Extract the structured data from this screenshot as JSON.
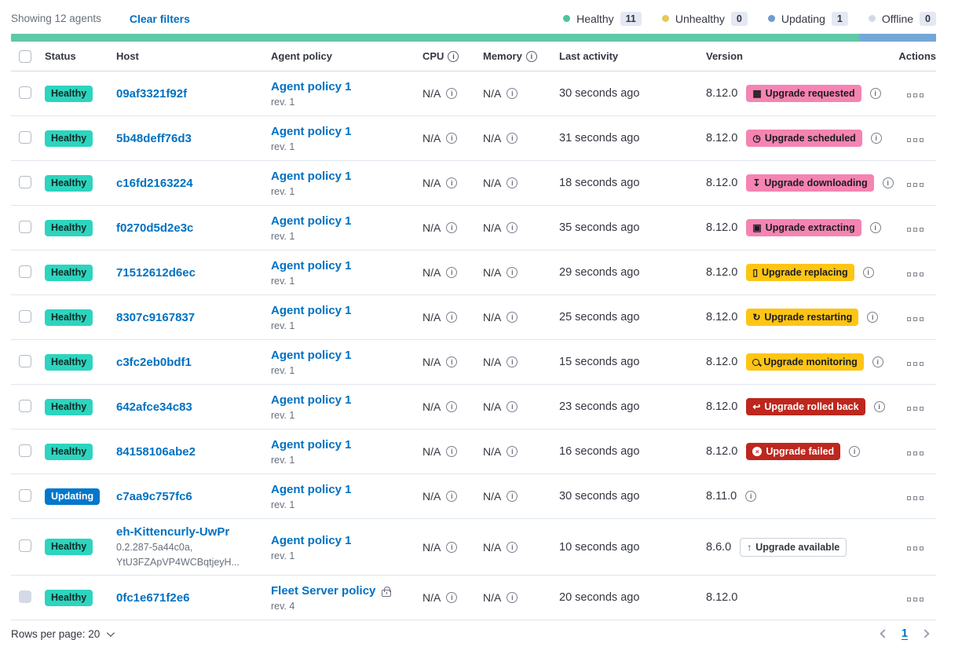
{
  "toolbar": {
    "showing": "Showing 12 agents",
    "clear_filters": "Clear filters"
  },
  "legend": [
    {
      "label": "Healthy",
      "count": "11",
      "dot_color": "#4DC4A1"
    },
    {
      "label": "Unhealthy",
      "count": "0",
      "dot_color": "#E5CB54"
    },
    {
      "label": "Updating",
      "count": "1",
      "dot_color": "#6D9CCF"
    },
    {
      "label": "Offline",
      "count": "0",
      "dot_color": "#D3DAE6"
    }
  ],
  "status_bar": {
    "segments": [
      {
        "name": "healthy",
        "color": "#5FC9A7",
        "fraction": 11
      },
      {
        "name": "updating",
        "color": "#74A7D6",
        "fraction": 1
      }
    ]
  },
  "colors": {
    "link": "#0071C2",
    "healthy_badge": "#2DD4BE",
    "updating_badge": "#0077CC",
    "upgrade_pink": "#F584B2",
    "upgrade_warning": "#FEC514",
    "upgrade_danger": "#BD271E",
    "text_subdued": "#69707D"
  },
  "table": {
    "columns": {
      "status": "Status",
      "host": "Host",
      "policy": "Agent policy",
      "cpu": "CPU",
      "memory": "Memory",
      "last_activity": "Last activity",
      "version": "Version",
      "actions": "Actions"
    }
  },
  "agents": [
    {
      "status": {
        "label": "Healthy",
        "color": "success"
      },
      "host": "09af3321f92f",
      "host_sub": [],
      "policy": {
        "name": "Agent policy 1",
        "rev": "rev. 1",
        "locked": false
      },
      "cpu": "N/A",
      "memory": "N/A",
      "last_activity": "30 seconds ago",
      "version": "8.12.0",
      "upgrade": {
        "label": "Upgrade requested",
        "color": "pink",
        "icon": "calendar-icon"
      },
      "version_info": true,
      "checkbox_disabled": false
    },
    {
      "status": {
        "label": "Healthy",
        "color": "success"
      },
      "host": "5b48deff76d3",
      "host_sub": [],
      "policy": {
        "name": "Agent policy 1",
        "rev": "rev. 1",
        "locked": false
      },
      "cpu": "N/A",
      "memory": "N/A",
      "last_activity": "31 seconds ago",
      "version": "8.12.0",
      "upgrade": {
        "label": "Upgrade scheduled",
        "color": "pink",
        "icon": "clock-icon"
      },
      "version_info": true,
      "checkbox_disabled": false
    },
    {
      "status": {
        "label": "Healthy",
        "color": "success"
      },
      "host": "c16fd2163224",
      "host_sub": [],
      "policy": {
        "name": "Agent policy 1",
        "rev": "rev. 1",
        "locked": false
      },
      "cpu": "N/A",
      "memory": "N/A",
      "last_activity": "18 seconds ago",
      "version": "8.12.0",
      "upgrade": {
        "label": "Upgrade downloading",
        "color": "pink",
        "icon": "download-icon"
      },
      "version_info": true,
      "checkbox_disabled": false
    },
    {
      "status": {
        "label": "Healthy",
        "color": "success"
      },
      "host": "f0270d5d2e3c",
      "host_sub": [],
      "policy": {
        "name": "Agent policy 1",
        "rev": "rev. 1",
        "locked": false
      },
      "cpu": "N/A",
      "memory": "N/A",
      "last_activity": "35 seconds ago",
      "version": "8.12.0",
      "upgrade": {
        "label": "Upgrade extracting",
        "color": "pink",
        "icon": "package-icon"
      },
      "version_info": true,
      "checkbox_disabled": false
    },
    {
      "status": {
        "label": "Healthy",
        "color": "success"
      },
      "host": "71512612d6ec",
      "host_sub": [],
      "policy": {
        "name": "Agent policy 1",
        "rev": "rev. 1",
        "locked": false
      },
      "cpu": "N/A",
      "memory": "N/A",
      "last_activity": "29 seconds ago",
      "version": "8.12.0",
      "upgrade": {
        "label": "Upgrade replacing",
        "color": "warning",
        "icon": "document-icon"
      },
      "version_info": true,
      "checkbox_disabled": false
    },
    {
      "status": {
        "label": "Healthy",
        "color": "success"
      },
      "host": "8307c9167837",
      "host_sub": [],
      "policy": {
        "name": "Agent policy 1",
        "rev": "rev. 1",
        "locked": false
      },
      "cpu": "N/A",
      "memory": "N/A",
      "last_activity": "25 seconds ago",
      "version": "8.12.0",
      "upgrade": {
        "label": "Upgrade restarting",
        "color": "warning",
        "icon": "refresh-icon"
      },
      "version_info": true,
      "checkbox_disabled": false
    },
    {
      "status": {
        "label": "Healthy",
        "color": "success"
      },
      "host": "c3fc2eb0bdf1",
      "host_sub": [],
      "policy": {
        "name": "Agent policy 1",
        "rev": "rev. 1",
        "locked": false
      },
      "cpu": "N/A",
      "memory": "N/A",
      "last_activity": "15 seconds ago",
      "version": "8.12.0",
      "upgrade": {
        "label": "Upgrade monitoring",
        "color": "warning",
        "icon": "magnifier-icon"
      },
      "version_info": true,
      "checkbox_disabled": false
    },
    {
      "status": {
        "label": "Healthy",
        "color": "success"
      },
      "host": "642afce34c83",
      "host_sub": [],
      "policy": {
        "name": "Agent policy 1",
        "rev": "rev. 1",
        "locked": false
      },
      "cpu": "N/A",
      "memory": "N/A",
      "last_activity": "23 seconds ago",
      "version": "8.12.0",
      "upgrade": {
        "label": "Upgrade rolled back",
        "color": "danger",
        "icon": "return-icon"
      },
      "version_info": true,
      "checkbox_disabled": false
    },
    {
      "status": {
        "label": "Healthy",
        "color": "success"
      },
      "host": "84158106abe2",
      "host_sub": [],
      "policy": {
        "name": "Agent policy 1",
        "rev": "rev. 1",
        "locked": false
      },
      "cpu": "N/A",
      "memory": "N/A",
      "last_activity": "16 seconds ago",
      "version": "8.12.0",
      "upgrade": {
        "label": "Upgrade failed",
        "color": "danger",
        "icon": "cross-circle-icon"
      },
      "version_info": true,
      "checkbox_disabled": false
    },
    {
      "status": {
        "label": "Updating",
        "color": "primary"
      },
      "host": "c7aa9c757fc6",
      "host_sub": [],
      "policy": {
        "name": "Agent policy 1",
        "rev": "rev. 1",
        "locked": false
      },
      "cpu": "N/A",
      "memory": "N/A",
      "last_activity": "30 seconds ago",
      "version": "8.11.0",
      "upgrade": null,
      "version_info": true,
      "checkbox_disabled": false
    },
    {
      "status": {
        "label": "Healthy",
        "color": "success"
      },
      "host": "eh-Kittencurly-UwPr",
      "host_sub": [
        "0.2.287-5a44c0a,",
        "YtU3FZApVP4WCBqtjeyH..."
      ],
      "policy": {
        "name": "Agent policy 1",
        "rev": "rev. 1",
        "locked": false
      },
      "cpu": "N/A",
      "memory": "N/A",
      "last_activity": "10 seconds ago",
      "version": "8.6.0",
      "upgrade": {
        "label": "Upgrade available",
        "color": "hollow",
        "icon": "arrow-up-icon"
      },
      "version_info": false,
      "checkbox_disabled": false
    },
    {
      "status": {
        "label": "Healthy",
        "color": "success"
      },
      "host": "0fc1e671f2e6",
      "host_sub": [],
      "policy": {
        "name": "Fleet Server policy",
        "rev": "rev. 4",
        "locked": true
      },
      "cpu": "N/A",
      "memory": "N/A",
      "last_activity": "20 seconds ago",
      "version": "8.12.0",
      "upgrade": null,
      "version_info": false,
      "checkbox_disabled": true
    }
  ],
  "footer": {
    "rows_per_page": "Rows per page: 20",
    "page": "1"
  }
}
